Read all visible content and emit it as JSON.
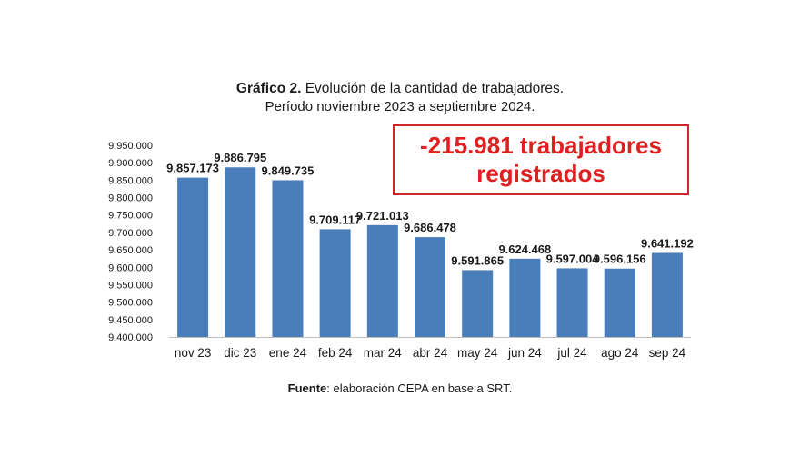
{
  "header": {
    "title_bold": "Gráfico 2.",
    "title_rest": " Evolución de la cantidad de trabajadores.",
    "subtitle": "Período noviembre 2023 a septiembre 2024."
  },
  "callout": {
    "line1": "-215.981 trabajadores",
    "line2": "registrados",
    "color": "#e02020"
  },
  "footer": {
    "source_bold": "Fuente",
    "source_rest": ": elaboración CEPA en base a SRT."
  },
  "chart_data": {
    "type": "bar",
    "categories": [
      "nov 23",
      "dic 23",
      "ene 24",
      "feb 24",
      "mar 24",
      "abr 24",
      "may 24",
      "jun 24",
      "jul 24",
      "ago 24",
      "sep 24"
    ],
    "values": [
      9857173,
      9886795,
      9849735,
      9709117,
      9721013,
      9686478,
      9591865,
      9624468,
      9597004,
      9596156,
      9641192
    ],
    "data_labels": [
      "9.857.173",
      "9.886.795",
      "9.849.735",
      "9.709.117",
      "9.721.013",
      "9.686.478",
      "9.591.865",
      "9.624.468",
      "9.597.004",
      "9.596.156",
      "9.641.192"
    ],
    "ylim": [
      9400000,
      9950000
    ],
    "yticks": [
      9950000,
      9900000,
      9850000,
      9800000,
      9750000,
      9700000,
      9650000,
      9600000,
      9550000,
      9500000,
      9450000,
      9400000
    ],
    "ytick_labels": [
      "9.950.000",
      "9.900.000",
      "9.850.000",
      "9.800.000",
      "9.750.000",
      "9.700.000",
      "9.650.000",
      "9.600.000",
      "9.550.000",
      "9.500.000",
      "9.450.000",
      "9.400.000"
    ],
    "grid": false,
    "bar_color": "#4a7ebb"
  }
}
